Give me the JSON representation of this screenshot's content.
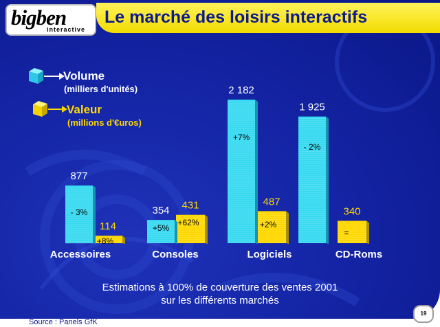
{
  "header": {
    "logo_main": "bigben",
    "logo_sub": "interactive",
    "title": "Le marché des loisirs interactifs"
  },
  "legend": {
    "volume_title": "Volume",
    "volume_unit": "(milliers d'unités)",
    "value_title": "Valeur",
    "value_unit": "(millions d'€uros)"
  },
  "colors": {
    "volume": "#36d9f0",
    "value": "#ffd800",
    "title_bar": "#f6e000",
    "background": "#1526a8"
  },
  "chart_data": {
    "type": "bar",
    "categories": [
      "Accessoires",
      "Consoles",
      "Logiciels",
      "CD-Roms"
    ],
    "series": [
      {
        "name": "Volume",
        "values": [
          877,
          354,
          2182,
          1925
        ],
        "labels": [
          "877",
          "354",
          "2 182",
          "1 925"
        ],
        "changes": [
          "- 3%",
          "+5%",
          "+7%",
          "- 2%"
        ]
      },
      {
        "name": "Valeur",
        "values": [
          114,
          431,
          487,
          340
        ],
        "labels": [
          "114",
          "431",
          "487",
          "340"
        ],
        "changes": [
          "+8%",
          "+62%",
          "+2%",
          "="
        ]
      }
    ],
    "ylim": [
      0,
      2182
    ]
  },
  "footnote": {
    "line1": "Estimations à 100% de couverture des ventes 2001",
    "line2": "sur les différents marchés"
  },
  "page_number": "19",
  "source": "Source : Panels GfK"
}
